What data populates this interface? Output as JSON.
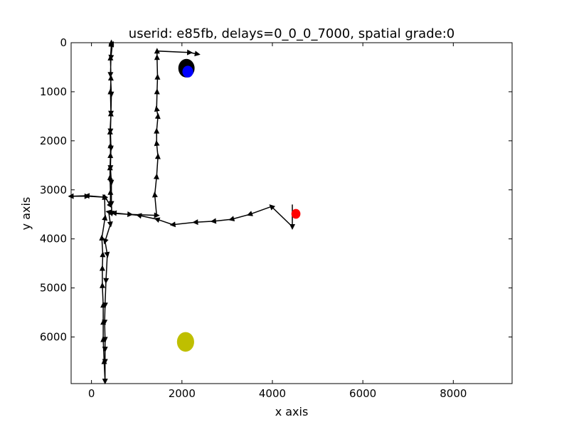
{
  "chart_data": {
    "type": "scatter",
    "title": "userid: e85fb, delays=0_0_0_7000, spatial grade:0",
    "xlabel": "x axis",
    "ylabel": "y axis",
    "xlim": [
      -450,
      9300
    ],
    "ylim": [
      6950,
      0
    ],
    "y_inverted": true,
    "grid": false,
    "x_ticks": [
      0,
      2000,
      4000,
      6000,
      8000
    ],
    "y_ticks": [
      0,
      1000,
      2000,
      3000,
      4000,
      5000,
      6000
    ],
    "path": {
      "color": "#000000",
      "marker": "triangle-direction",
      "points": [
        [
          4440,
          3300
        ],
        [
          4440,
          3750
        ],
        [
          3980,
          3340
        ],
        [
          3500,
          3500
        ],
        [
          3100,
          3600
        ],
        [
          2700,
          3640
        ],
        [
          2300,
          3660
        ],
        [
          1800,
          3710
        ],
        [
          1450,
          3600
        ],
        [
          1050,
          3520
        ],
        [
          500,
          3470
        ],
        [
          380,
          3450
        ],
        [
          420,
          3700
        ],
        [
          300,
          4050
        ],
        [
          350,
          4320
        ],
        [
          320,
          4850
        ],
        [
          300,
          5350
        ],
        [
          290,
          5700
        ],
        [
          300,
          6050
        ],
        [
          300,
          6250
        ],
        [
          300,
          6500
        ],
        [
          300,
          6900
        ],
        [
          280,
          6500
        ],
        [
          260,
          6050
        ],
        [
          260,
          5700
        ],
        [
          260,
          5350
        ],
        [
          240,
          4950
        ],
        [
          240,
          4600
        ],
        [
          250,
          4320
        ],
        [
          230,
          3980
        ],
        [
          300,
          3570
        ],
        [
          290,
          3150
        ],
        [
          -100,
          3120
        ],
        [
          -450,
          3130
        ],
        [
          -100,
          3130
        ],
        [
          300,
          3150
        ],
        [
          420,
          3320
        ],
        [
          420,
          3050
        ],
        [
          410,
          2750
        ],
        [
          410,
          2550
        ],
        [
          420,
          2300
        ],
        [
          420,
          2100
        ],
        [
          410,
          1820
        ],
        [
          430,
          1450
        ],
        [
          420,
          1000
        ],
        [
          430,
          720
        ],
        [
          420,
          310
        ],
        [
          440,
          30
        ],
        [
          440,
          0
        ],
        [
          460,
          40
        ],
        [
          430,
          300
        ],
        [
          420,
          650
        ],
        [
          440,
          1050
        ],
        [
          430,
          1440
        ],
        [
          420,
          1800
        ],
        [
          430,
          2150
        ],
        [
          420,
          2550
        ],
        [
          440,
          2850
        ],
        [
          440,
          3280
        ],
        [
          450,
          3480
        ],
        [
          850,
          3500
        ],
        [
          1440,
          3520
        ],
        [
          1400,
          3100
        ],
        [
          1440,
          2730
        ],
        [
          1470,
          2320
        ],
        [
          1440,
          2050
        ],
        [
          1440,
          1800
        ],
        [
          1470,
          1500
        ],
        [
          1440,
          1350
        ],
        [
          1450,
          1000
        ],
        [
          1460,
          700
        ],
        [
          1450,
          300
        ],
        [
          1450,
          170
        ],
        [
          2170,
          200
        ],
        [
          2340,
          230
        ]
      ]
    },
    "circles": [
      {
        "name": "target",
        "x": 2100,
        "y": 520,
        "rx": 180,
        "ry": 190,
        "color": "#000000"
      },
      {
        "name": "current",
        "x": 2130,
        "y": 590,
        "rx": 120,
        "ry": 120,
        "color": "#0000ff"
      },
      {
        "name": "start",
        "x": 4520,
        "y": 3490,
        "rx": 100,
        "ry": 100,
        "color": "#ff0000"
      },
      {
        "name": "other",
        "x": 2080,
        "y": 6100,
        "rx": 190,
        "ry": 200,
        "color": "#bfbf00"
      }
    ]
  }
}
